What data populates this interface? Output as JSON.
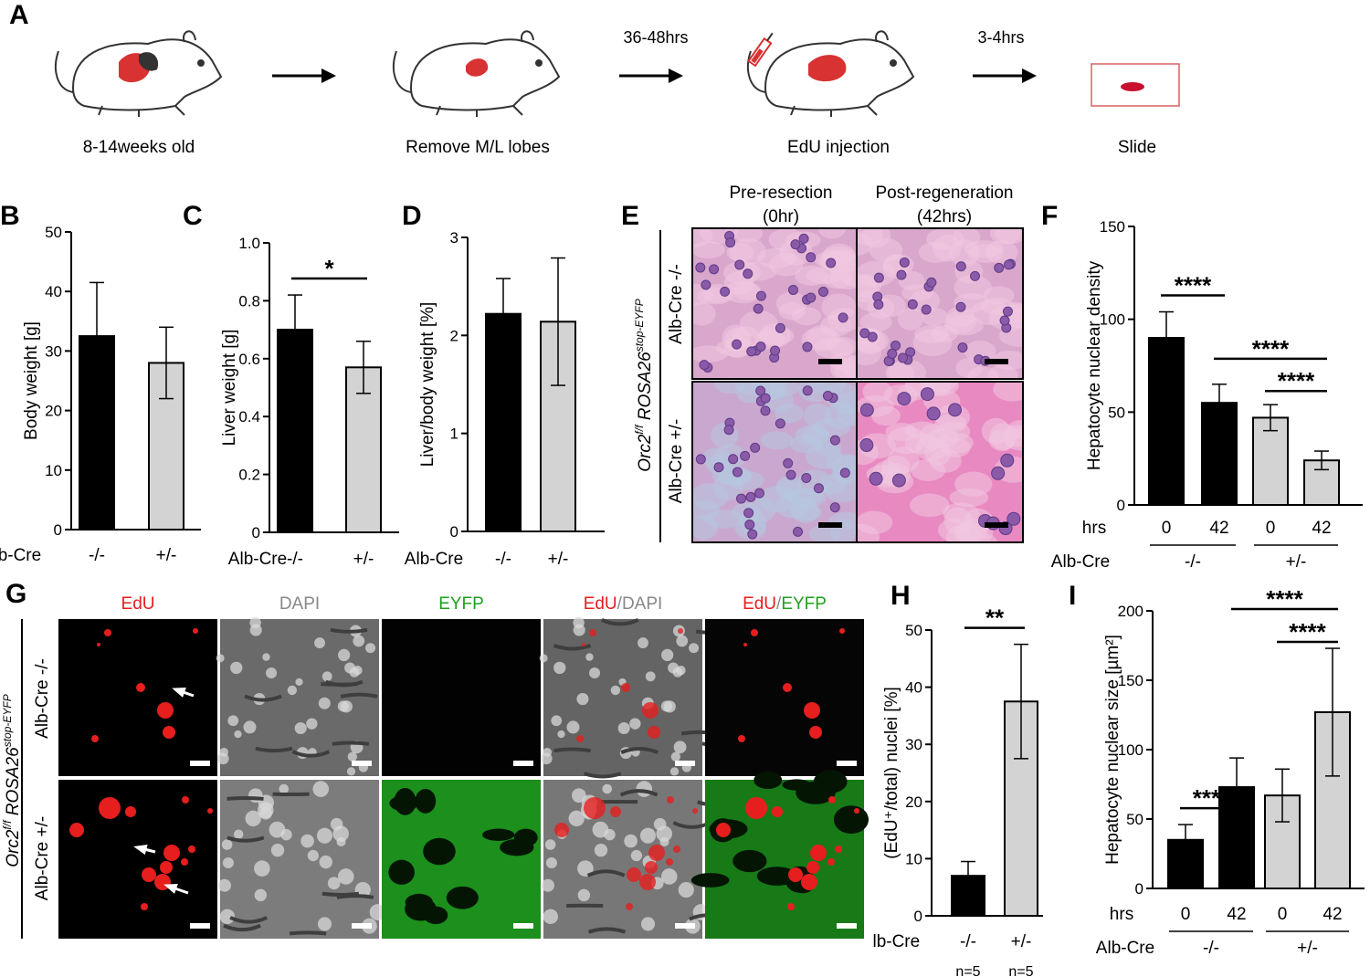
{
  "panel_labels": [
    "A",
    "B",
    "C",
    "D",
    "E",
    "F",
    "G",
    "H",
    "I"
  ],
  "colors": {
    "bar_ko": "#000000",
    "bar_het": "#d3d3d3",
    "liver": "#d83232",
    "edu": "#e61e1e",
    "eyfp": "#1ea01e",
    "dapi": "#888888"
  },
  "workflow": {
    "steps": [
      {
        "caption": "8-14weeks old",
        "icon": "mouse-liver-icon"
      },
      {
        "caption": "Remove M/L lobes",
        "icon": "mouse-resected-icon"
      },
      {
        "caption": "EdU injection",
        "icon": "mouse-syringe-icon"
      },
      {
        "caption": "Slide",
        "icon": "slide-icon"
      }
    ],
    "arrows": [
      "",
      "36-48hrs",
      "3-4hrs"
    ]
  },
  "groups": {
    "ko": "-/-",
    "het": "+/-",
    "label": "Alb-Cre",
    "hrs_label": "hrs"
  },
  "chart_data": [
    {
      "panel": "B",
      "type": "bar",
      "categories": [
        "-/-",
        "+/-"
      ],
      "values": [
        32.5,
        28
      ],
      "errors": [
        9,
        6
      ],
      "ylabel": "Body weight [g]",
      "ylim": [
        0,
        50
      ],
      "yticks": [
        "0",
        "10",
        "20",
        "30",
        "40",
        "50"
      ],
      "xgroup_label": "Alb-Cre",
      "significance": []
    },
    {
      "panel": "C",
      "type": "bar",
      "categories": [
        "-/-",
        "+/-"
      ],
      "values": [
        0.7,
        0.57
      ],
      "errors": [
        0.12,
        0.09
      ],
      "ylabel": "Liver weight [g]",
      "ylim": [
        0,
        1.0
      ],
      "yticks": [
        "0",
        "0.2",
        "0.4",
        "0.6",
        "0.8",
        "1.0"
      ],
      "xgroup_label": "Alb-Cre",
      "significance": [
        {
          "pair": [
            0,
            1
          ],
          "label": "*"
        }
      ]
    },
    {
      "panel": "D",
      "type": "bar",
      "categories": [
        "-/-",
        "+/-"
      ],
      "values": [
        2.22,
        2.14
      ],
      "errors": [
        0.36,
        0.65
      ],
      "ylabel": "Liver/body weight [%]",
      "ylim": [
        0,
        3
      ],
      "yticks": [
        "0",
        "1",
        "2",
        "3"
      ],
      "xgroup_label": "Alb-Cre",
      "significance": []
    },
    {
      "panel": "F",
      "type": "bar",
      "categories": [
        "0",
        "42",
        "0",
        "42"
      ],
      "genotypes": [
        "-/-",
        "-/-",
        "+/-",
        "+/-"
      ],
      "values": [
        90,
        55,
        47,
        24
      ],
      "errors": [
        14,
        10,
        7,
        5
      ],
      "ylabel": "Hepatocyte nuclear density",
      "ylim": [
        0,
        150
      ],
      "yticks": [
        "0",
        "50",
        "100",
        "150"
      ],
      "xgroup_label": "Alb-Cre",
      "significance": [
        {
          "pair": [
            0,
            1
          ],
          "label": "****"
        },
        {
          "pair": [
            1,
            3
          ],
          "label": "****"
        },
        {
          "pair": [
            2,
            3
          ],
          "label": "****"
        }
      ]
    },
    {
      "panel": "H",
      "type": "bar",
      "categories": [
        "-/-",
        "+/-"
      ],
      "values": [
        7,
        37.5
      ],
      "errors": [
        2.5,
        10
      ],
      "ylabel": "(EdU⁺/total) nuclei [%]",
      "ylim": [
        0,
        50
      ],
      "yticks": [
        "0",
        "10",
        "20",
        "30",
        "40",
        "50"
      ],
      "xgroup_label": "Alb-Cre",
      "n_labels": [
        "n=5",
        "n=5"
      ],
      "significance": [
        {
          "pair": [
            0,
            1
          ],
          "label": "**"
        }
      ]
    },
    {
      "panel": "I",
      "type": "bar",
      "categories": [
        "0",
        "42",
        "0",
        "42"
      ],
      "genotypes": [
        "-/-",
        "-/-",
        "+/-",
        "+/-"
      ],
      "values": [
        35,
        73,
        67,
        127
      ],
      "errors": [
        11,
        21,
        19,
        46
      ],
      "ylabel": "Hepatocyte nuclear size [µm²]",
      "ylim": [
        0,
        200
      ],
      "yticks": [
        "0",
        "50",
        "100",
        "150",
        "200"
      ],
      "xgroup_label": "Alb-Cre",
      "significance": [
        {
          "pair": [
            0,
            1
          ],
          "label": "****"
        },
        {
          "pair": [
            1,
            3
          ],
          "label": "****"
        },
        {
          "pair": [
            2,
            3
          ],
          "label": "****"
        }
      ]
    }
  ],
  "histology": {
    "columns": [
      "Pre-resection",
      "(0hr)",
      "Post-regeneration",
      "(42hrs)"
    ],
    "rows": [
      "Alb-Cre -/-",
      "Alb-Cre +/-"
    ],
    "side_label": {
      "gene": "Orc2",
      "gene_sup": "f/f",
      "allele": " ROSA26",
      "allele_sup": "stop-EYFP"
    }
  },
  "microscopy": {
    "channels": [
      {
        "parts": [
          {
            "t": "EdU",
            "c": "#e61e1e"
          }
        ]
      },
      {
        "parts": [
          {
            "t": "DAPI",
            "c": "#888888"
          }
        ]
      },
      {
        "parts": [
          {
            "t": "EYFP",
            "c": "#1ea01e"
          }
        ]
      },
      {
        "parts": [
          {
            "t": "EdU",
            "c": "#e61e1e"
          },
          {
            "t": "/",
            "c": "#888888"
          },
          {
            "t": "DAPI",
            "c": "#888888"
          }
        ]
      },
      {
        "parts": [
          {
            "t": "EdU",
            "c": "#e61e1e"
          },
          {
            "t": "/",
            "c": "#888888"
          },
          {
            "t": "EYFP",
            "c": "#1ea01e"
          }
        ]
      }
    ],
    "rows": [
      "Alb-Cre -/-",
      "Alb-Cre +/-"
    ]
  }
}
